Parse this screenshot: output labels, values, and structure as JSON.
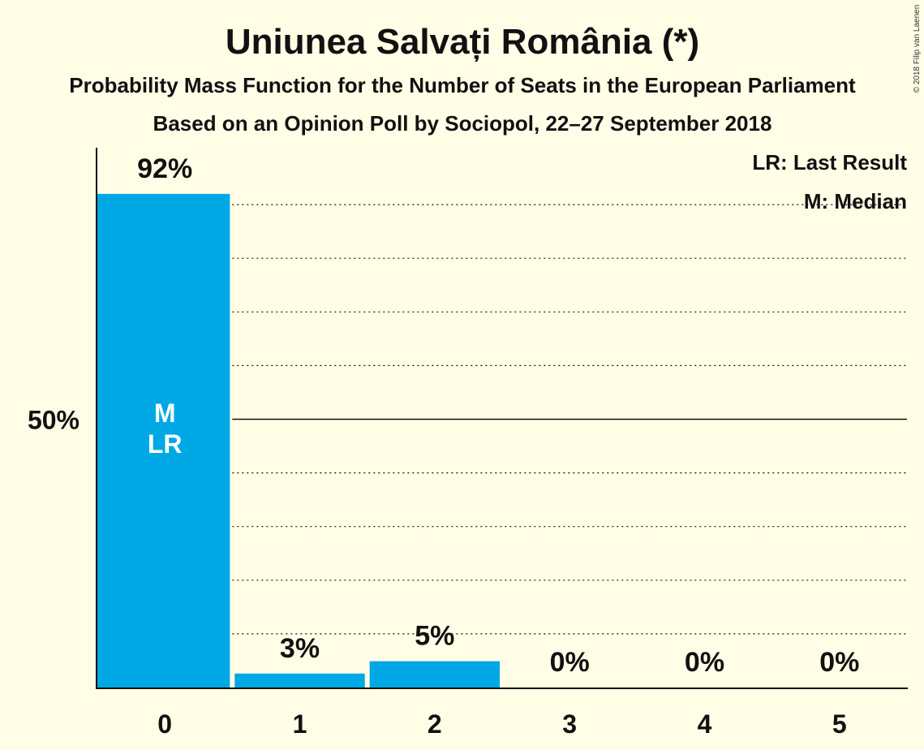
{
  "title": "Uniunea Salvați România (*)",
  "subtitle1": "Probability Mass Function for the Number of Seats in the European Parliament",
  "subtitle2": "Based on an Opinion Poll by Sociopol, 22–27 September 2018",
  "copyright": "© 2018 Filip van Laenen",
  "legend": {
    "last_result": "LR: Last Result",
    "median": "M: Median"
  },
  "colors": {
    "bar": "#00A8E6",
    "background": "#FFFDE6",
    "axis": "#111111"
  },
  "chart_data": {
    "type": "bar",
    "categories": [
      "0",
      "1",
      "2",
      "3",
      "4",
      "5"
    ],
    "values": [
      92,
      2.6,
      4.9,
      0,
      0,
      0
    ],
    "value_labels": [
      "92%",
      "3%",
      "5%",
      "0%",
      "0%",
      "0%"
    ],
    "ylim": [
      0,
      100
    ],
    "y_tick_labels": [
      {
        "value": 50,
        "label": "50%"
      }
    ],
    "gridlines": [
      10,
      20,
      30,
      40,
      50,
      60,
      70,
      80,
      90
    ],
    "median_category": "0",
    "last_result_category": "0",
    "bar_annotations": [
      {
        "category": "0",
        "lines": [
          "M",
          "LR"
        ]
      }
    ]
  }
}
